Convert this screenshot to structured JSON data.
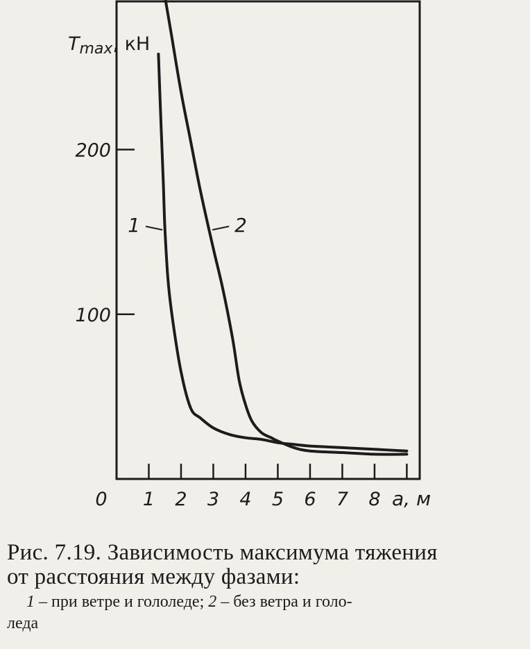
{
  "chart_data": {
    "type": "line",
    "ylabel": "T",
    "ylabel_sub": "max",
    "ylabel_unit": ", кН",
    "xlabel": "a, м",
    "xlim": [
      0,
      9.4
    ],
    "ylim": [
      0,
      290
    ],
    "x_ticks": [
      1,
      2,
      3,
      4,
      5,
      6,
      7,
      8,
      9
    ],
    "x_tick_labels": [
      "0",
      "1",
      "2",
      "3",
      "4",
      "5",
      "6",
      "7",
      "8"
    ],
    "y_ticks": [
      100,
      200
    ],
    "y_tick_labels": [
      "100",
      "200"
    ],
    "series": [
      {
        "name": "1",
        "x": [
          1.3,
          1.35,
          1.4,
          1.45,
          1.5,
          1.6,
          1.75,
          2.0,
          2.3,
          2.6,
          3.0,
          3.5,
          4.0,
          4.5,
          5.0,
          5.5,
          6.0,
          7.0,
          8.0,
          9.0
        ],
        "y": [
          258,
          230,
          205,
          180,
          152,
          120,
          95,
          65,
          43,
          37,
          31,
          27,
          25,
          24,
          22,
          21,
          20,
          19,
          18,
          17
        ]
      },
      {
        "name": "2",
        "x": [
          1.5,
          1.7,
          2.0,
          2.3,
          2.6,
          3.0,
          3.3,
          3.6,
          3.8,
          4.0,
          4.2,
          4.5,
          4.8,
          5.0,
          5.5,
          6.0,
          7.0,
          8.0,
          9.0
        ],
        "y": [
          293,
          270,
          235,
          205,
          175,
          140,
          115,
          85,
          60,
          45,
          35,
          28,
          25,
          23,
          19,
          17,
          16,
          15,
          15
        ]
      }
    ]
  },
  "caption": {
    "line1": "Рис. 7.19. Зависимость максимума тяжения",
    "line2": "от расстояния между фазами:",
    "num1": "1",
    "text1": " – при ветре и гололеде; ",
    "num2": "2",
    "text2": " – без ветра и голо-",
    "line4": "леда"
  }
}
